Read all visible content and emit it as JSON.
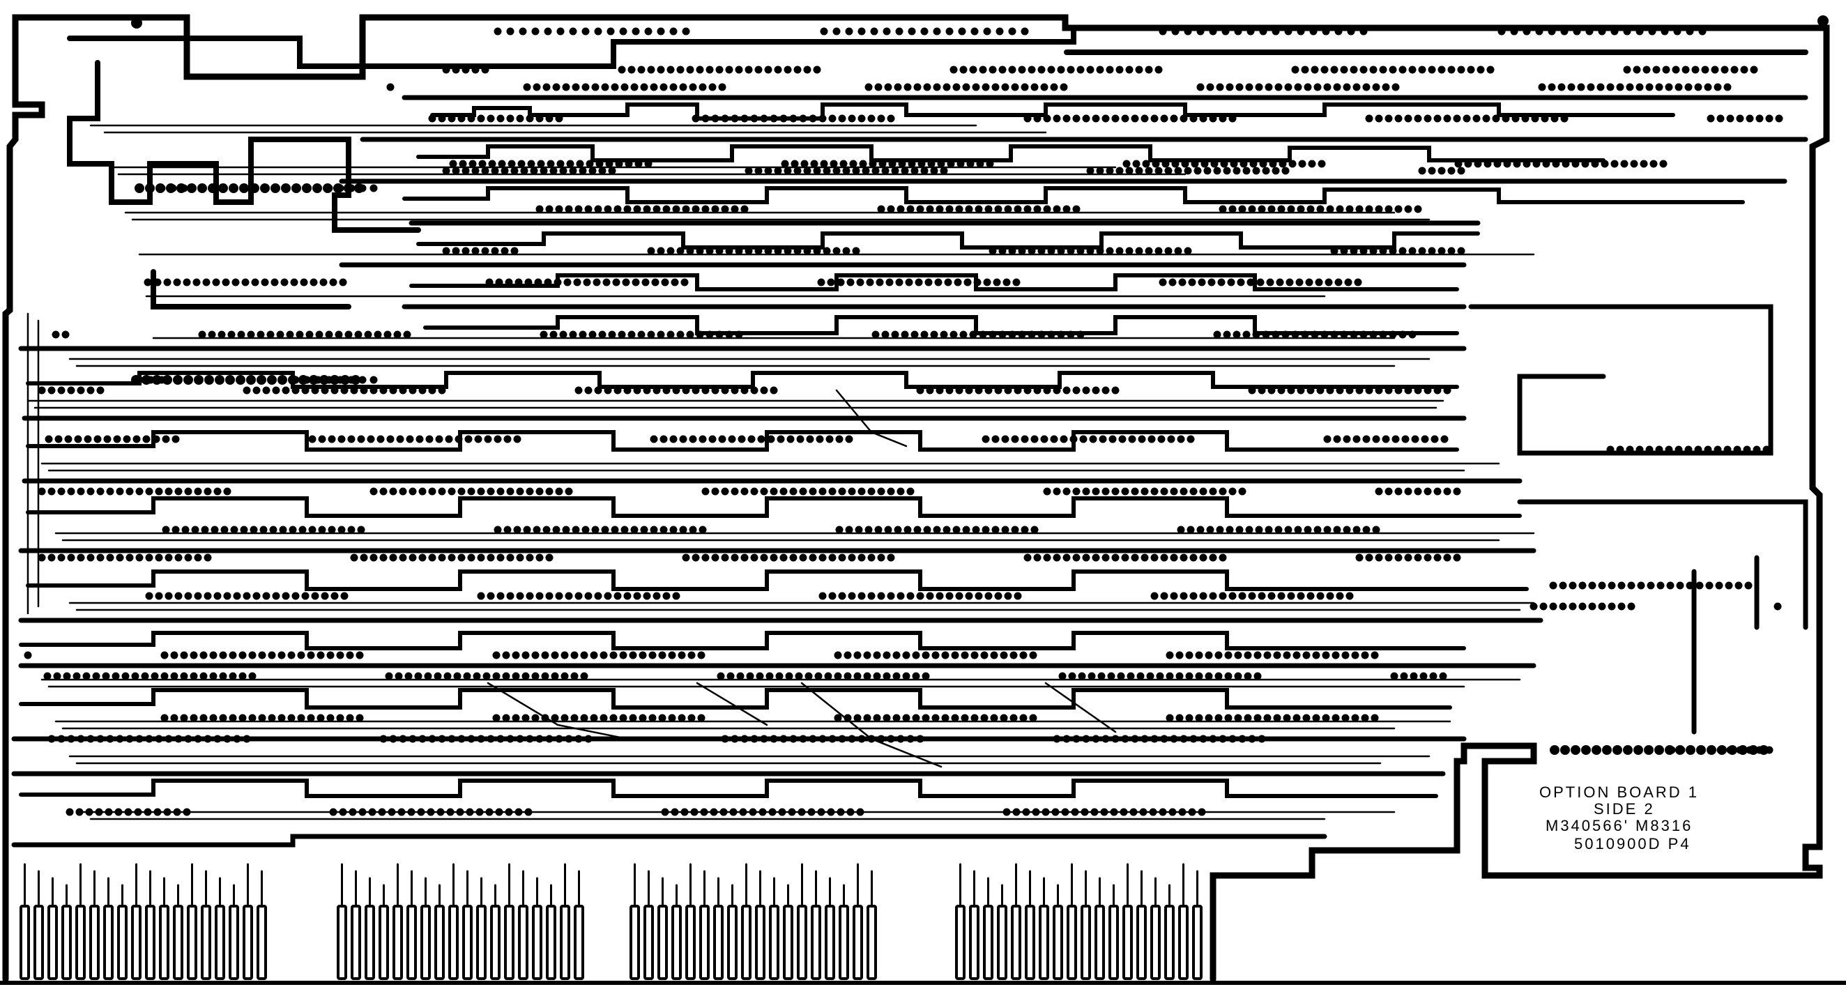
{
  "board_label": {
    "line1": "OPTION BOARD 1",
    "line2": "SIDE 2",
    "line3": "M340566' M8316",
    "line4": "5010900D P4"
  },
  "colors": {
    "ink": "#000000",
    "paper": "#ffffff"
  },
  "connector_groups": [
    {
      "fingers": 18
    },
    {
      "fingers": 18
    },
    {
      "fingers": 18
    },
    {
      "fingers": 18
    }
  ]
}
